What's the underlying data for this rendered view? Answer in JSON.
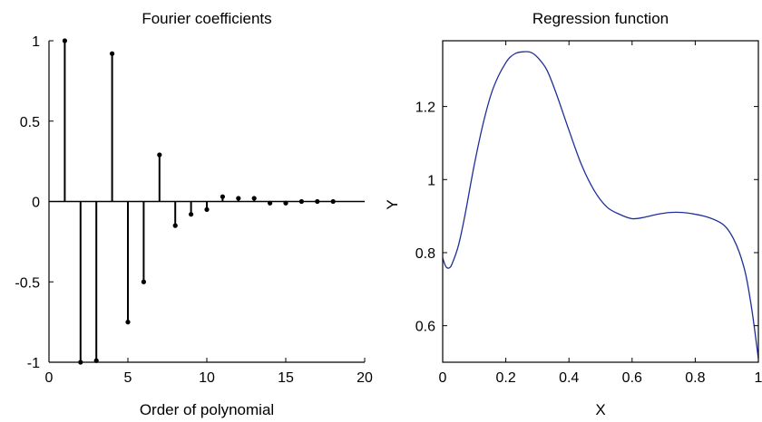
{
  "chart_data": [
    {
      "type": "stem",
      "title": "Fourier coefficients",
      "xlabel": "Order of polynomial",
      "ylabel": "",
      "xlim": [
        0,
        20
      ],
      "ylim": [
        -1,
        1
      ],
      "xticks": [
        "0",
        "5",
        "10",
        "15",
        "20"
      ],
      "yticks": [
        "-1",
        "-0.5",
        "0",
        "0.5",
        "1"
      ],
      "x": [
        1,
        2,
        3,
        4,
        5,
        6,
        7,
        8,
        9,
        10,
        11,
        12,
        13,
        14,
        15,
        16,
        17,
        18
      ],
      "values": [
        1.0,
        -1.0,
        -0.99,
        0.92,
        -0.75,
        -0.5,
        0.29,
        -0.15,
        -0.08,
        -0.05,
        0.03,
        0.02,
        0.02,
        -0.01,
        -0.01,
        0.0,
        0.0,
        0.0
      ],
      "color": "#000000"
    },
    {
      "type": "line",
      "title": "Regression function",
      "xlabel": "X",
      "ylabel": "Y",
      "xlim": [
        0,
        1
      ],
      "ylim": [
        0.5,
        1.38
      ],
      "xticks": [
        "0",
        "0.2",
        "0.4",
        "0.6",
        "0.8",
        "1"
      ],
      "yticks": [
        "0.6",
        "0.8",
        "1",
        "1.2"
      ],
      "series": [
        {
          "x": [
            0.0,
            0.01,
            0.02,
            0.03,
            0.05,
            0.07,
            0.1,
            0.13,
            0.16,
            0.2,
            0.23,
            0.26,
            0.28,
            0.3,
            0.33,
            0.36,
            0.4,
            0.44,
            0.48,
            0.52,
            0.56,
            0.6,
            0.64,
            0.68,
            0.72,
            0.76,
            0.8,
            0.84,
            0.88,
            0.9,
            0.92,
            0.94,
            0.96,
            0.98,
            1.0
          ],
          "y": [
            0.785,
            0.762,
            0.758,
            0.77,
            0.82,
            0.9,
            1.04,
            1.16,
            1.25,
            1.32,
            1.345,
            1.35,
            1.348,
            1.335,
            1.3,
            1.235,
            1.135,
            1.04,
            0.97,
            0.925,
            0.905,
            0.893,
            0.897,
            0.905,
            0.91,
            0.91,
            0.905,
            0.897,
            0.882,
            0.867,
            0.84,
            0.8,
            0.74,
            0.64,
            0.51
          ]
        }
      ],
      "color": "#1f2f9a"
    }
  ]
}
